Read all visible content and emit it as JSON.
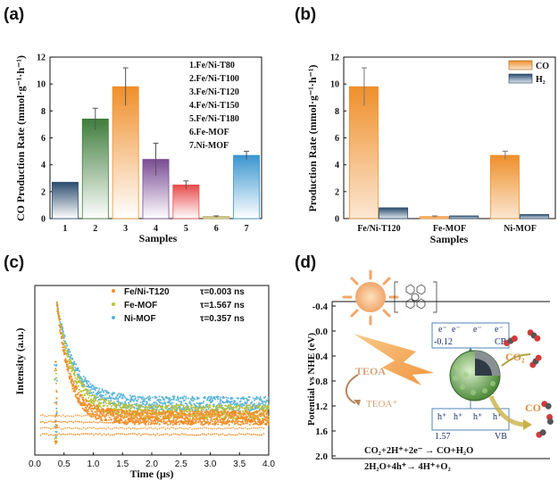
{
  "panels": {
    "a": "(a)",
    "b": "(b)",
    "c": "(c)",
    "d": "(d)"
  },
  "colors": {
    "orange": "#ef8f2a",
    "green": "#3f7d3c",
    "purple": "#7a4c93",
    "red": "#e84a4a",
    "olive": "#b7a64c",
    "blue": "#3b95d0",
    "navy": "#2b4d6e",
    "teal": "#4fa3c8",
    "cyan": "#5ab3d8"
  },
  "chart_data": [
    {
      "id": "a",
      "type": "bar",
      "categories": [
        "1",
        "2",
        "3",
        "4",
        "5",
        "6",
        "7"
      ],
      "values": [
        2.7,
        7.4,
        9.8,
        4.4,
        2.5,
        0.15,
        4.7
      ],
      "errors": [
        0,
        0.8,
        1.4,
        1.2,
        0.3,
        0.05,
        0.3
      ],
      "bar_colors": [
        "#2b4d6e",
        "#3f7d3c",
        "#ef8f2a",
        "#7a4c93",
        "#e84a4a",
        "#b7a64c",
        "#3b95d0"
      ],
      "xlabel": "Samples",
      "ylabel": "CO Production Rate (mmol·g⁻¹·h⁻¹)",
      "ylim": [
        0,
        12
      ],
      "yticks": [
        "0",
        "2",
        "4",
        "6",
        "8",
        "10",
        "12"
      ],
      "legend": [
        "1.Fe/Ni-T80",
        "2.Fe/Ni-T100",
        "3.Fe/Ni-T120",
        "4.Fe/Ni-T150",
        "5.Fe/Ni-T180",
        "6.Fe-MOF",
        "7.Ni-MOF"
      ]
    },
    {
      "id": "b",
      "type": "bar",
      "categories": [
        "Fe/Ni-T120",
        "Fe-MOF",
        "Ni-MOF"
      ],
      "series": [
        {
          "name": "CO",
          "values": [
            9.8,
            0.15,
            4.7
          ],
          "errors": [
            1.4,
            0.05,
            0.3
          ]
        },
        {
          "name": "H₂",
          "values": [
            0.8,
            0.2,
            0.3
          ],
          "errors": [
            0,
            0,
            0
          ]
        }
      ],
      "xlabel": "Samples",
      "ylabel": "Production Rate (mmol·g⁻¹·h⁻¹)",
      "ylim": [
        0,
        12
      ],
      "yticks": [
        "0",
        "2",
        "4",
        "6",
        "8",
        "10",
        "12"
      ]
    },
    {
      "id": "c",
      "type": "scatter",
      "xlabel": "Time (μs)",
      "ylabel": "Intensity (a.u.)",
      "xlim": [
        0,
        4
      ],
      "xticks": [
        "0.0",
        "0.5",
        "1.0",
        "1.5",
        "2.0",
        "2.5",
        "3.0",
        "3.5",
        "4.0"
      ],
      "series": [
        {
          "name": "Fe/Ni-T120",
          "tau": "τ=0.003 ns",
          "decay": 0.22,
          "floor": 0.2,
          "color": "#ef8f2a"
        },
        {
          "name": "Fe-MOF",
          "tau": "τ=1.567 ns",
          "decay": 0.28,
          "floor": 0.24,
          "color": "#b7c23a"
        },
        {
          "name": "Ni-MOF",
          "tau": "τ=0.357 ns",
          "decay": 0.3,
          "floor": 0.3,
          "color": "#5ab3d8"
        }
      ]
    },
    {
      "id": "d",
      "type": "diagram",
      "ylabel": "Potential vs NHE (eV)",
      "yticks": [
        "-0.4",
        "0.0",
        "0.4",
        "0.8",
        "1.2",
        "1.6",
        "2.0"
      ],
      "cb_value": "-0.12",
      "cb_label": "CB",
      "vb_value": "1.57",
      "vb_label": "VB",
      "electron": "e⁻",
      "hole": "h⁺",
      "labels": {
        "teoa": "TEOA",
        "teoa_plus": "TEOA⁺",
        "co2": "CO₂",
        "co": "CO",
        "eq1": "CO₂+2H⁺+2e⁻ → CO+H₂O",
        "eq2": "2H₂O+4h⁺→ 4H⁺+O₂"
      }
    }
  ]
}
